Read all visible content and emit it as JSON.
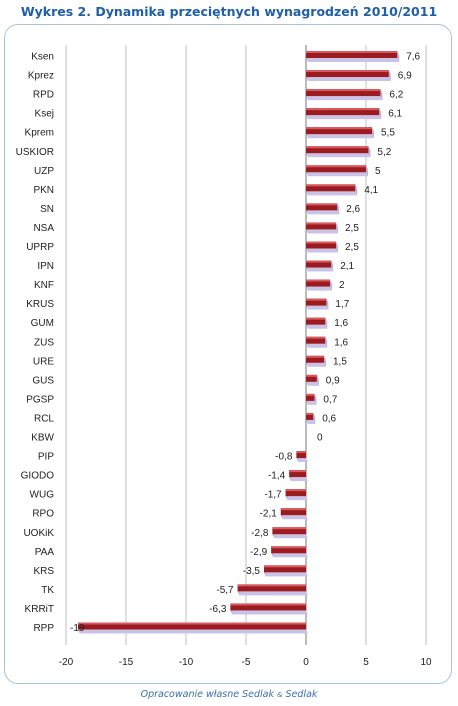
{
  "title": "Wykres 2. Dynamika przeciętnych wynagrodzeń 2010/2011",
  "source": {
    "prefix": "Opracowanie własne Sedlak ",
    "amp": "&",
    "suffix": " Sedlak"
  },
  "colors": {
    "bar_front": "#9b1b20",
    "bar_top": "#d85a5e",
    "bar_shadow": "#c9c3e8",
    "title": "#1f5fa8",
    "grid": "#c0c0c0"
  },
  "chart_data": {
    "type": "bar",
    "orientation": "horizontal",
    "categories": [
      "Ksen",
      "Kprez",
      "RPD",
      "Ksej",
      "Kprem",
      "USKIOR",
      "UZP",
      "PKN",
      "SN",
      "NSA",
      "UPRP",
      "IPN",
      "KNF",
      "KRUS",
      "GUM",
      "ZUS",
      "URE",
      "GUS",
      "PGSP",
      "RCL",
      "KBW",
      "PIP",
      "GIODO",
      "WUG",
      "RPO",
      "UOKiK",
      "PAA",
      "KRS",
      "TK",
      "KRRiT",
      "RPP"
    ],
    "values": [
      7.6,
      6.9,
      6.2,
      6.1,
      5.5,
      5.2,
      5,
      4.1,
      2.6,
      2.5,
      2.5,
      2.1,
      2,
      1.7,
      1.6,
      1.6,
      1.5,
      0.9,
      0.7,
      0.6,
      0,
      -0.8,
      -1.4,
      -1.7,
      -2.1,
      -2.8,
      -2.9,
      -3.5,
      -5.7,
      -6.3,
      -19
    ],
    "value_labels": [
      "7,6",
      "6,9",
      "6,2",
      "6,1",
      "5,5",
      "5,2",
      "5",
      "4,1",
      "2,6",
      "2,5",
      "2,5",
      "2,1",
      "2",
      "1,7",
      "1,6",
      "1,6",
      "1,5",
      "0,9",
      "0,7",
      "0,6",
      "0",
      "-0,8",
      "-1,4",
      "-1,7",
      "-2,1",
      "-2,8",
      "-2,9",
      "-3,5",
      "-5,7",
      "-6,3",
      "-19"
    ],
    "xlim": [
      -20,
      10
    ],
    "x_ticks": [
      -20,
      -15,
      -10,
      -5,
      0,
      5,
      10
    ],
    "grid": true,
    "legend": false
  }
}
